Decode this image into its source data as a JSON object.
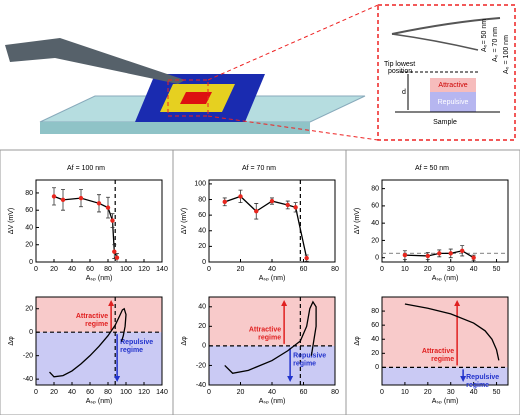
{
  "diagram": {
    "a0_labels": [
      "A₀= 50 nm",
      "A₀ = 70 nm",
      "A₀ = 100 nm"
    ],
    "tip": [
      "Tip lowest",
      "position"
    ],
    "attractive": "Attractive",
    "repulsive": "Repulsive",
    "d": "d",
    "sample": "Sample"
  },
  "chart_data": [
    {
      "type": "line",
      "title": "Af = 100 nm",
      "x_label": "Aₛₚ (nm)",
      "y_label": "ΔV (mV)",
      "x": [
        20,
        30,
        50,
        70,
        80,
        85,
        87,
        90
      ],
      "values": [
        76,
        72,
        74,
        68,
        63,
        48,
        12,
        5
      ],
      "errors": [
        10,
        12,
        10,
        10,
        12,
        8,
        8,
        5
      ],
      "color": "#000000",
      "marker_color": "#e8271f",
      "xlim": [
        0,
        140
      ],
      "xticks": [
        0,
        20,
        40,
        60,
        80,
        100,
        120,
        140
      ],
      "ylim": [
        0,
        95
      ],
      "yticks": [
        0,
        20,
        40,
        60,
        80
      ],
      "vline": 88
    },
    {
      "type": "line",
      "x_label": "Aₛₚ (nm)",
      "y_label": "Δφ",
      "x": [
        15,
        20,
        30,
        40,
        50,
        60,
        70,
        80,
        88,
        93,
        96,
        98,
        100,
        99,
        97,
        95
      ],
      "values": [
        -34,
        -38,
        -37,
        -33,
        -27,
        -20,
        -12,
        -3,
        6,
        14,
        19,
        20,
        15,
        5,
        -3,
        -8
      ],
      "color": "#000000",
      "xlim": [
        0,
        140
      ],
      "xticks": [
        0,
        20,
        40,
        60,
        80,
        100,
        120,
        140
      ],
      "ylim": [
        -45,
        30
      ],
      "yticks": [
        -40,
        -20,
        0,
        20
      ],
      "hline": 0,
      "vline": 88,
      "regions": {
        "above": "#f8caca",
        "below": "#cacaf4"
      },
      "annotations": {
        "attractive": [
          "Attractive",
          "regime"
        ],
        "repulsive": [
          "Repulsive",
          "regime"
        ],
        "attractive_color": "#e02020",
        "repulsive_color": "#2233cc"
      }
    },
    {
      "type": "line",
      "title": "Af = 70 nm",
      "x_label": "Aₛₚ (nm)",
      "y_label": "ΔV (mV)",
      "x": [
        10,
        20,
        30,
        40,
        50,
        55,
        62
      ],
      "values": [
        77,
        84,
        65,
        78,
        73,
        70,
        5
      ],
      "errors": [
        5,
        8,
        10,
        4,
        5,
        6,
        4
      ],
      "color": "#000000",
      "marker_color": "#e8271f",
      "xlim": [
        0,
        80
      ],
      "xticks": [
        0,
        20,
        40,
        60,
        80
      ],
      "ylim": [
        0,
        105
      ],
      "yticks": [
        0,
        20,
        40,
        60,
        80,
        100
      ],
      "vline": 58
    },
    {
      "type": "line",
      "x_label": "Aₛₚ (nm)",
      "y_label": "Δφ",
      "x": [
        10,
        15,
        25,
        40,
        50,
        58,
        62,
        64,
        66,
        68,
        68,
        66,
        65
      ],
      "values": [
        -20,
        -28,
        -25,
        -15,
        -5,
        5,
        20,
        38,
        45,
        40,
        20,
        0,
        -10
      ],
      "color": "#000000",
      "xlim": [
        0,
        80
      ],
      "xticks": [
        0,
        20,
        40,
        60,
        80
      ],
      "ylim": [
        -40,
        50
      ],
      "yticks": [
        -40,
        -20,
        0,
        20,
        40
      ],
      "hline": 0,
      "vline": 58,
      "regions": {
        "above": "#f8caca",
        "below": "#cacaf4"
      },
      "annotations": {
        "attractive": [
          "Attractive",
          "regime"
        ],
        "repulsive": [
          "Repulsive",
          "regime"
        ],
        "attractive_color": "#e02020",
        "repulsive_color": "#2233cc"
      }
    },
    {
      "type": "line",
      "title": "Af = 50 nm",
      "x_label": "Aₛₚ (nm)",
      "y_label": "ΔV (mV)",
      "x": [
        10,
        20,
        25,
        30,
        35,
        40
      ],
      "values": [
        3,
        2,
        5,
        5,
        8,
        0
      ],
      "errors": [
        5,
        4,
        4,
        5,
        6,
        3
      ],
      "color": "#000000",
      "marker_color": "#e8271f",
      "xlim": [
        0,
        55
      ],
      "xticks": [
        0,
        10,
        20,
        30,
        40,
        50
      ],
      "ylim": [
        -5,
        90
      ],
      "yticks": [
        0,
        20,
        40,
        60,
        80
      ],
      "hline": 5,
      "hline_color": "#999999"
    },
    {
      "type": "line",
      "x_label": "Aₛₚ (nm)",
      "y_label": "Δφ",
      "x": [
        10,
        20,
        30,
        40,
        45,
        48,
        50,
        51
      ],
      "values": [
        90,
        84,
        76,
        63,
        52,
        40,
        25,
        10
      ],
      "color": "#000000",
      "xlim": [
        0,
        55
      ],
      "xticks": [
        0,
        10,
        20,
        30,
        40,
        50
      ],
      "ylim": [
        -25,
        100
      ],
      "yticks": [
        0,
        20,
        40,
        60,
        80
      ],
      "hline": 0,
      "regions": {
        "above": "#f8caca",
        "below": "#cacaf4"
      },
      "annotations": {
        "attractive": [
          "Attractive",
          "regime"
        ],
        "repulsive": [
          "Repulsive",
          "regime"
        ],
        "attractive_color": "#e02020",
        "repulsive_color": "#2233cc"
      }
    }
  ]
}
